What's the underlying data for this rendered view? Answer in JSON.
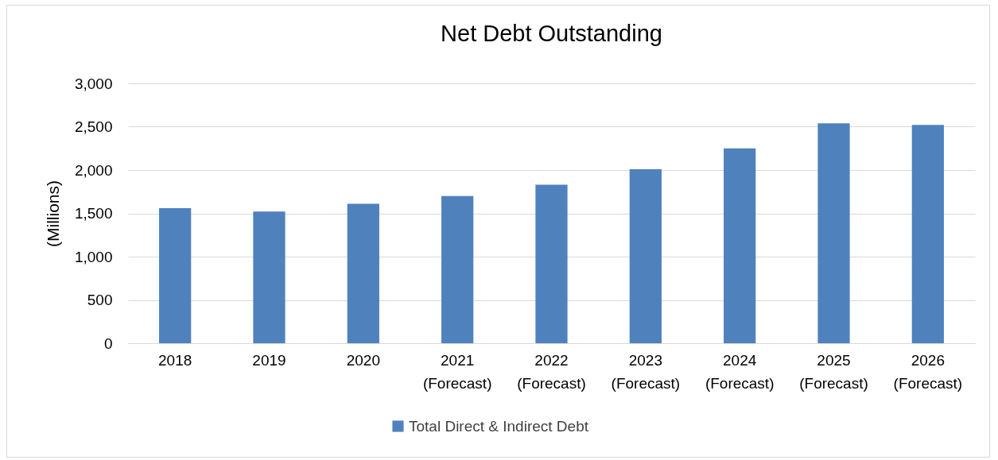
{
  "chart_data": {
    "type": "bar",
    "title": "Net Debt Outstanding",
    "ylabel": "(Millions)",
    "categories": [
      "2018",
      "2019",
      "2020",
      "2021 (Forecast)",
      "2022 (Forecast)",
      "2023 (Forecast)",
      "2024 (Forecast)",
      "2025 (Forecast)",
      "2026 (Forecast)"
    ],
    "series": [
      {
        "name": "Total Direct & Indirect Debt",
        "color": "#4f81bd",
        "values": [
          1560,
          1520,
          1610,
          1700,
          1830,
          2010,
          2250,
          2540,
          2520
        ]
      }
    ],
    "ylim": [
      0,
      3000
    ],
    "yticks": [
      0,
      {
        "value": 500,
        "label": "500"
      },
      {
        "value": 1000,
        "label": "1,000"
      },
      {
        "value": 1500,
        "label": "1,500"
      },
      {
        "value": 2000,
        "label": "2,000"
      },
      {
        "value": 2500,
        "label": "2,500"
      },
      {
        "value": 3000,
        "label": "3,000"
      }
    ],
    "grid": "y",
    "legend": "bottom"
  }
}
